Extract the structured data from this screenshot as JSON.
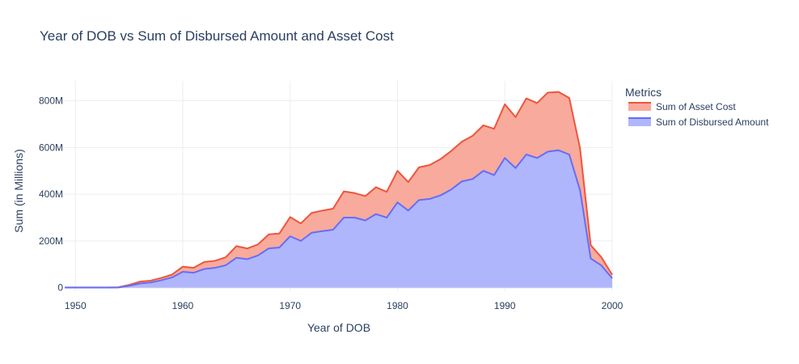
{
  "chart_data": {
    "type": "area",
    "title": "Year of DOB vs Sum of Disbursed Amount and Asset Cost",
    "xlabel": "Year of DOB",
    "ylabel": "Sum (in Millions)",
    "xlim": [
      1949,
      2000
    ],
    "ylim": [
      -15,
      885
    ],
    "x_ticks": [
      1950,
      1960,
      1970,
      1980,
      1990,
      2000
    ],
    "y_ticks": [
      0,
      200,
      400,
      600,
      800
    ],
    "y_tick_labels": [
      "0",
      "200M",
      "400M",
      "600M",
      "800M"
    ],
    "grid": true,
    "stacked": false,
    "legend": {
      "title": "Metrics",
      "position": "top-right"
    },
    "x": [
      1949,
      1950,
      1951,
      1952,
      1953,
      1954,
      1955,
      1956,
      1957,
      1958,
      1959,
      1960,
      1961,
      1962,
      1963,
      1964,
      1965,
      1966,
      1967,
      1968,
      1969,
      1970,
      1971,
      1972,
      1973,
      1974,
      1975,
      1976,
      1977,
      1978,
      1979,
      1980,
      1981,
      1982,
      1983,
      1984,
      1985,
      1986,
      1987,
      1988,
      1989,
      1990,
      1991,
      1992,
      1993,
      1994,
      1995,
      1996,
      1997,
      1998,
      1999,
      2000
    ],
    "series": [
      {
        "name": "Sum of Asset Cost",
        "color": "#ef553b",
        "fill": "#f8aa9c",
        "values": [
          1,
          1,
          1,
          1,
          1,
          2,
          12,
          26,
          30,
          42,
          56,
          90,
          85,
          110,
          115,
          130,
          178,
          168,
          185,
          228,
          232,
          302,
          275,
          320,
          330,
          338,
          412,
          405,
          392,
          430,
          410,
          500,
          452,
          515,
          525,
          550,
          585,
          625,
          650,
          695,
          680,
          785,
          730,
          810,
          790,
          835,
          838,
          812,
          598,
          182,
          130,
          55
        ]
      },
      {
        "name": "Sum of Disbursed Amount",
        "color": "#636efa",
        "fill": "#b0b6fc",
        "values": [
          0.5,
          0.5,
          0.5,
          0.5,
          0.5,
          1,
          8,
          18,
          22,
          32,
          44,
          68,
          64,
          80,
          85,
          96,
          128,
          122,
          138,
          168,
          172,
          220,
          200,
          235,
          242,
          248,
          300,
          300,
          288,
          315,
          300,
          365,
          330,
          375,
          380,
          395,
          420,
          455,
          465,
          500,
          482,
          555,
          512,
          570,
          555,
          582,
          588,
          570,
          418,
          125,
          95,
          40
        ]
      }
    ]
  }
}
